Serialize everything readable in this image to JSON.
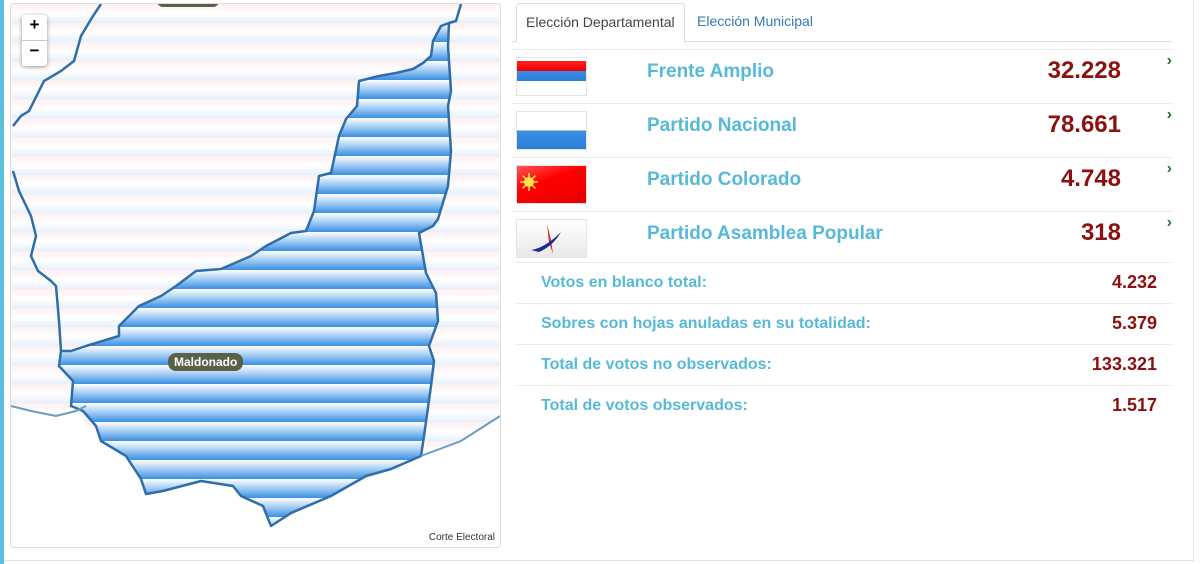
{
  "map": {
    "zoom_in": "+",
    "zoom_out": "−",
    "region_label": "Maldonado",
    "attribution": "Corte Electoral",
    "fill_color": "#4a9be8",
    "border_color": "#2f6ea8"
  },
  "tabs": [
    {
      "label": "Elección Departamental",
      "active": true
    },
    {
      "label": "Elección Municipal",
      "active": false
    }
  ],
  "parties": [
    {
      "name": "Frente Amplio",
      "votes": "32.228",
      "flag": "frente-amplio-flag",
      "chevron": "›"
    },
    {
      "name": "Partido Nacional",
      "votes": "78.661",
      "flag": "partido-nacional-flag",
      "chevron": "›"
    },
    {
      "name": "Partido Colorado",
      "votes": "4.748",
      "flag": "partido-colorado-flag",
      "chevron": "›"
    },
    {
      "name": "Partido Asamblea Popular",
      "votes": "318",
      "flag": "asamblea-popular-flag",
      "chevron": "›"
    }
  ],
  "stats": [
    {
      "label": "Votos en blanco total:",
      "value": "4.232"
    },
    {
      "label": "Sobres con hojas anuladas en su totalidad:",
      "value": "5.379"
    },
    {
      "label": "Total de votos no observados:",
      "value": "133.321"
    },
    {
      "label": "Total de votos observados:",
      "value": "1.517"
    }
  ],
  "colors": {
    "accent": "#5bc0de",
    "value": "#8b1111",
    "chevron": "#2e6e2e",
    "link": "#337ab7"
  }
}
